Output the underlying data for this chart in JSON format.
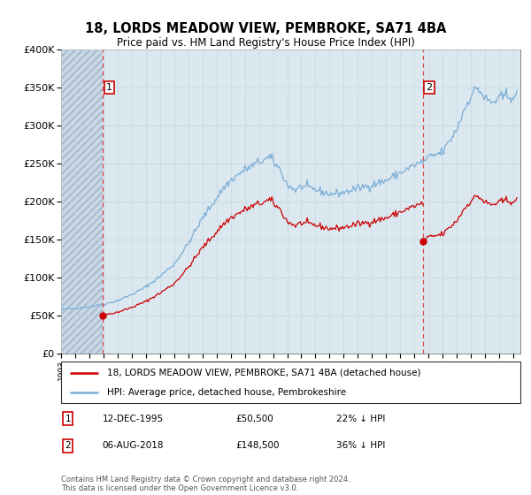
{
  "title": "18, LORDS MEADOW VIEW, PEMBROKE, SA71 4BA",
  "subtitle": "Price paid vs. HM Land Registry's House Price Index (HPI)",
  "legend_line1": "18, LORDS MEADOW VIEW, PEMBROKE, SA71 4BA (detached house)",
  "legend_line2": "HPI: Average price, detached house, Pembrokeshire",
  "footnote": "Contains HM Land Registry data © Crown copyright and database right 2024.\nThis data is licensed under the Open Government Licence v3.0.",
  "annotation1_date": "12-DEC-1995",
  "annotation1_price": "£50,500",
  "annotation1_hpi": "22% ↓ HPI",
  "annotation2_date": "06-AUG-2018",
  "annotation2_price": "£148,500",
  "annotation2_hpi": "36% ↓ HPI",
  "sale1_x": 1995.958,
  "sale1_y": 50500,
  "sale2_x": 2018.583,
  "sale2_y": 148500,
  "hpi_color": "#7aaed6",
  "sale_color": "#cc0000",
  "vline_color": "#dd4444",
  "grid_color": "#c8d4e0",
  "background_plot": "#dce8f0",
  "ylim": [
    0,
    400000
  ],
  "yticks": [
    0,
    50000,
    100000,
    150000,
    200000,
    250000,
    300000,
    350000,
    400000
  ],
  "xmin": 1993.0,
  "xmax": 2025.5
}
